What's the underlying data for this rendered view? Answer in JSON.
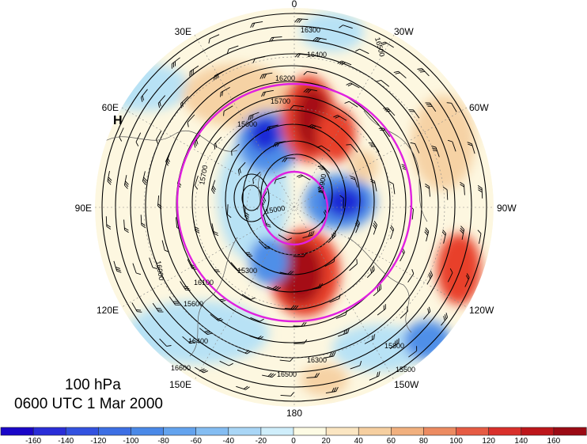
{
  "map": {
    "projection": "north-polar-stereographic",
    "lon_labels": {
      "top": "0",
      "top_right": "30W",
      "upper_right": "60W",
      "right": "90W",
      "lower_right": "120W",
      "bottom_right": "150W",
      "bottom": "180",
      "bottom_left": "150E",
      "lower_left": "120E",
      "left": "90E",
      "upper_left": "60E",
      "top_left": "30E"
    },
    "high_marker": "H",
    "contour_labels": [
      "16300",
      "16500",
      "16400",
      "16200",
      "15700",
      "15600",
      "15900",
      "15000",
      "16000",
      "16100",
      "16300",
      "16400",
      "16500",
      "16600",
      "15700",
      "15800",
      "15300",
      "15500",
      "15600"
    ],
    "contour_colors": {
      "height": "#000000",
      "highlight": "#e020e0"
    },
    "shading_colors": {
      "neg_strong": "#1a2ad6",
      "neg_mid": "#4f8fe8",
      "neg_weak": "#b8e2f5",
      "neutral": "#fdf7e0",
      "pos_weak": "#f6d2a4",
      "pos_mid": "#e8412a",
      "pos_strong": "#a50f15"
    }
  },
  "caption": {
    "level": "100 hPa",
    "time": "0600 UTC 1 Mar 2000"
  },
  "colorbar": {
    "ticks": [
      "-160",
      "-140",
      "-120",
      "-100",
      "-80",
      "-60",
      "-40",
      "-20",
      "0",
      "20",
      "40",
      "60",
      "80",
      "100",
      "120",
      "140",
      "160"
    ],
    "colors": [
      "#1a06c8",
      "#2a2ed8",
      "#3352e0",
      "#3d6fe4",
      "#4a89e8",
      "#63a3ee",
      "#84bdf2",
      "#a9d6f6",
      "#cfeefb",
      "#fdfbe4",
      "#fbe6c2",
      "#f6cfa0",
      "#f1b07e",
      "#ec8b61",
      "#e65c44",
      "#d9302b",
      "#bd161b",
      "#9b0a14"
    ]
  }
}
